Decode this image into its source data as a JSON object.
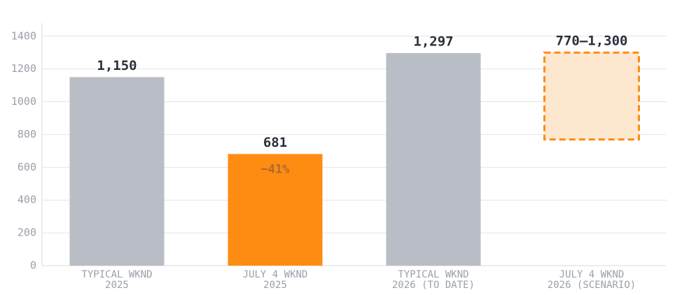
{
  "chart_data": {
    "type": "bar",
    "categories": [
      [
        "TYPICAL WKND",
        "2025"
      ],
      [
        "JULY 4 WKND",
        "2025"
      ],
      [
        "TYPICAL WKND",
        "2026 (TO DATE)"
      ],
      [
        "JULY 4 WKND",
        "2026 (SCENARIO)"
      ]
    ],
    "values": [
      1150,
      681,
      1297,
      [
        770,
        1300
      ]
    ],
    "value_labels": [
      "1,150",
      "681",
      "1,297",
      "770–1,300"
    ],
    "colors": [
      "#b9bdc5",
      "#ff8c12",
      "#b9bdc5",
      "#ff8c12"
    ],
    "annotations": [
      null,
      "−41%",
      null,
      null
    ],
    "ylim": [
      0,
      1480
    ],
    "yticks": [
      0,
      200,
      400,
      600,
      800,
      1000,
      1200,
      1400
    ],
    "grid": true
  }
}
